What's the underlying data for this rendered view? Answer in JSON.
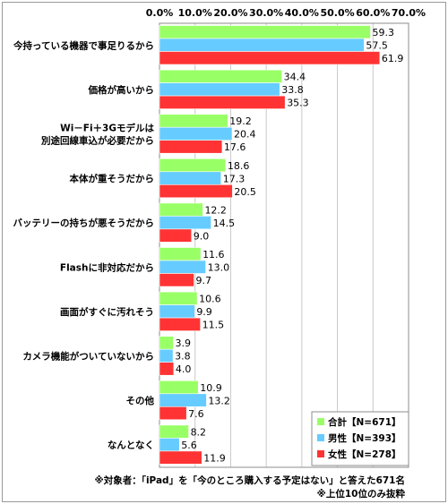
{
  "chart_data": {
    "type": "bar",
    "orientation": "horizontal",
    "xlim": [
      0,
      70
    ],
    "ticks": [
      "0.0%",
      "10.0%",
      "20.0%",
      "30.0%",
      "40.0%",
      "50.0%",
      "60.0%",
      "70.0%"
    ],
    "categories": [
      [
        "今持っている機器で事足りるから"
      ],
      [
        "価格が高いから"
      ],
      [
        "Wi－Fi＋3Gモデルは",
        "別途回線車込が必要だから"
      ],
      [
        "本体が重そうだから"
      ],
      [
        "バッテリーの持ちが悪そうだから"
      ],
      [
        "Flashに非対応だから"
      ],
      [
        "画面がすぐに汚れそう"
      ],
      [
        "カメラ機能がついていないから"
      ],
      [
        "その他"
      ],
      [
        "なんとなく"
      ]
    ],
    "series": [
      {
        "name": "合計【N=671】",
        "color": "#99ff66",
        "values": [
          59.3,
          34.4,
          19.2,
          18.6,
          12.2,
          11.6,
          10.6,
          3.9,
          10.9,
          8.2
        ]
      },
      {
        "name": "男性【N=393】",
        "color": "#66ccff",
        "values": [
          57.5,
          33.8,
          20.4,
          17.3,
          14.5,
          13.0,
          9.9,
          3.8,
          13.2,
          5.6
        ]
      },
      {
        "name": "女性【N=278】",
        "color": "#ff3333",
        "values": [
          61.9,
          35.3,
          17.6,
          20.5,
          9.0,
          9.7,
          11.5,
          4.0,
          7.6,
          11.9
        ]
      }
    ],
    "legend_position": "bottom-right",
    "grid": true,
    "notes": [
      "※対象者：「iPad」を「今のところ購入する予定はない」と答えた671名",
      "※上位10位のみ抜粋"
    ]
  }
}
